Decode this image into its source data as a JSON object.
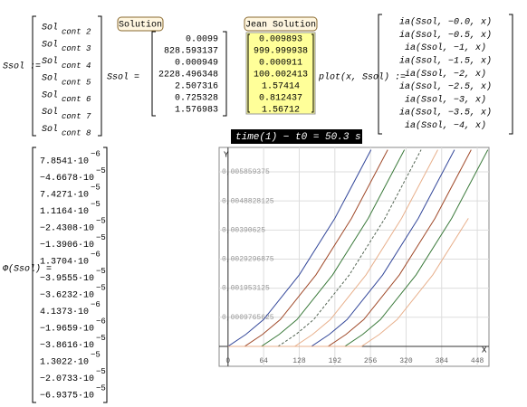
{
  "ssol_def": {
    "label": "Ssol :=",
    "rows": [
      {
        "main": "Sol",
        "sub": "cont 2"
      },
      {
        "main": "Sol",
        "sub": "cont 3"
      },
      {
        "main": "Sol",
        "sub": "cont 4"
      },
      {
        "main": "Sol",
        "sub": "cont 5"
      },
      {
        "main": "Sol",
        "sub": "cont 6"
      },
      {
        "main": "Sol",
        "sub": "cont 7"
      },
      {
        "main": "Sol",
        "sub": "cont 8"
      }
    ]
  },
  "solution": {
    "tag": "Solution",
    "label": "Ssol =",
    "values": [
      "0.0099",
      "828.593137",
      "0.000949",
      "2228.496348",
      "2.507316",
      "0.725328",
      "1.576983"
    ]
  },
  "jean": {
    "tag": "Jean Solution",
    "values": [
      "0.009893",
      "999.999938",
      "0.000911",
      "100.002413",
      "1.57414",
      "0.812437",
      "1.56712"
    ]
  },
  "plot_def": {
    "label": "plot(x, Ssol) :=",
    "rows": [
      "ia(Ssol, −0.0, x)",
      "ia(Ssol, −0.5, x)",
      "ia(Ssol, −1, x)",
      "ia(Ssol, −1.5, x)",
      "ia(Ssol, −2, x)",
      "ia(Ssol, −2.5, x)",
      "ia(Ssol, −3, x)",
      "ia(Ssol, −3.5, x)",
      "ia(Ssol, −4, x)"
    ]
  },
  "timer": "time(1) − t0 = 50.3 s",
  "phi": {
    "label": "Φ(Ssol) =",
    "rows": [
      {
        "mantissa": "7.8541·10",
        "exp": "−6"
      },
      {
        "mantissa": "−4.6678·10",
        "exp": "−5"
      },
      {
        "mantissa": "7.4271·10",
        "exp": "−5"
      },
      {
        "mantissa": "1.1164·10",
        "exp": "−5"
      },
      {
        "mantissa": "−2.4308·10",
        "exp": "−5"
      },
      {
        "mantissa": "−1.3906·10",
        "exp": "−5"
      },
      {
        "mantissa": "1.3704·10",
        "exp": "−6"
      },
      {
        "mantissa": "−3.9555·10",
        "exp": "−5"
      },
      {
        "mantissa": "−3.6232·10",
        "exp": "−5"
      },
      {
        "mantissa": "4.1373·10",
        "exp": "−6"
      },
      {
        "mantissa": "−1.9659·10",
        "exp": "−6"
      },
      {
        "mantissa": "−3.8616·10",
        "exp": "−5"
      },
      {
        "mantissa": "1.3022·10",
        "exp": "−5"
      },
      {
        "mantissa": "−2.0733·10",
        "exp": "−5"
      },
      {
        "mantissa": "−6.9375·10",
        "exp": "−5"
      }
    ]
  },
  "chart_data": {
    "type": "line",
    "x_label": "X",
    "y_label": "Y",
    "xlim": [
      -16,
      469
    ],
    "ylim": [
      -0.00067,
      0.00668
    ],
    "xticks": [
      0,
      64,
      128,
      192,
      256,
      320,
      384,
      448
    ],
    "yticks": [
      {
        "value": 0.0009765625,
        "label": "0,0009765625"
      },
      {
        "value": 0.001953125,
        "label": "0,001953125"
      },
      {
        "value": 0.0029296875,
        "label": "0,0029296875"
      },
      {
        "value": 0.00390625,
        "label": "0,00390625"
      },
      {
        "value": 0.0048828125,
        "label": "0,0048828125"
      },
      {
        "value": 0.005859375,
        "label": "0,005859375"
      }
    ],
    "grid": true,
    "series": [
      {
        "color": "#34489a",
        "x": [
          0,
          32,
          64,
          128,
          192,
          257
        ],
        "values": [
          0,
          0.0004,
          0.0009,
          0.0024,
          0.0043,
          0.0066
        ]
      },
      {
        "color": "#a04a2a",
        "x": [
          0,
          30,
          62,
          94,
          158,
          222,
          287
        ],
        "values": [
          0,
          0,
          0.0004,
          0.0009,
          0.0024,
          0.0043,
          0.0066
        ]
      },
      {
        "color": "#3b7a3b",
        "x": [
          0,
          60,
          92,
          124,
          188,
          252,
          317
        ],
        "values": [
          0,
          0,
          0.0004,
          0.0009,
          0.0024,
          0.0043,
          0.0066
        ]
      },
      {
        "color": "#556655",
        "dashed": true,
        "x": [
          0,
          90,
          122,
          154,
          218,
          282,
          347
        ],
        "values": [
          0,
          0,
          0.0004,
          0.0009,
          0.0024,
          0.0043,
          0.0066
        ]
      },
      {
        "color": "#e8b08c",
        "x": [
          0,
          120,
          152,
          184,
          248,
          312,
          377
        ],
        "values": [
          0,
          0,
          0.0004,
          0.0009,
          0.0024,
          0.0043,
          0.0066
        ]
      },
      {
        "color": "#34489a",
        "x": [
          0,
          150,
          182,
          214,
          278,
          342,
          407
        ],
        "values": [
          0,
          0,
          0.0004,
          0.0009,
          0.0024,
          0.0043,
          0.0066
        ]
      },
      {
        "color": "#a04a2a",
        "x": [
          0,
          180,
          212,
          244,
          308,
          372,
          437
        ],
        "values": [
          0,
          0,
          0.0004,
          0.0009,
          0.0024,
          0.0043,
          0.0066
        ]
      },
      {
        "color": "#3b7a3b",
        "x": [
          0,
          210,
          242,
          274,
          338,
          402,
          467
        ],
        "values": [
          0,
          0,
          0.0004,
          0.0009,
          0.0024,
          0.0043,
          0.0066
        ]
      },
      {
        "color": "#e8b08c",
        "x": [
          0,
          240,
          272,
          304,
          368,
          432
        ],
        "values": [
          0,
          0,
          0.0004,
          0.0009,
          0.0024,
          0.0043
        ]
      }
    ]
  }
}
